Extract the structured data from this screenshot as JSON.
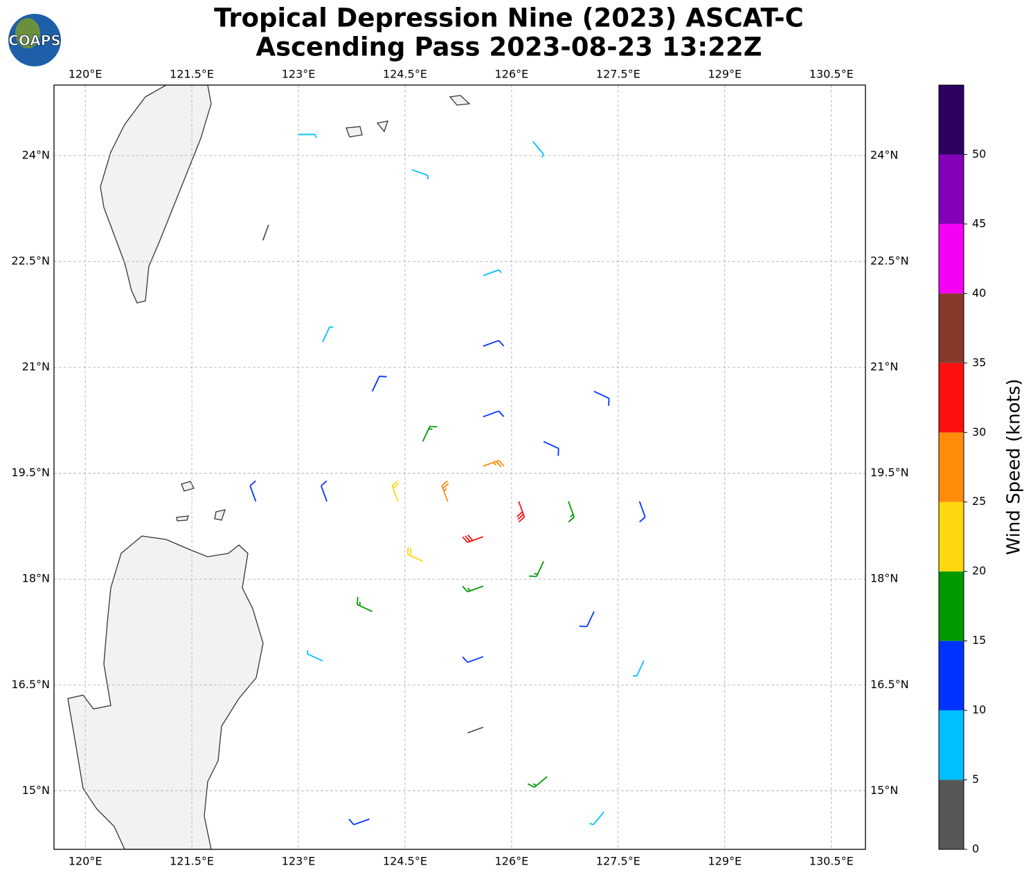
{
  "map": {
    "logo_text": "COAPS",
    "title": "Tropical Depression Nine (2023) ASCAT-C",
    "subtitle": "Ascending Pass 2023-08-23 13:22Z",
    "xlim": [
      119.56,
      130.98
    ],
    "ylim": [
      14.17,
      25.0
    ],
    "xticks": [
      {
        "value": 120,
        "label": "120°E"
      },
      {
        "value": 121.5,
        "label": "121.5°E"
      },
      {
        "value": 123,
        "label": "123°E"
      },
      {
        "value": 124.5,
        "label": "124.5°E"
      },
      {
        "value": 126,
        "label": "126°E"
      },
      {
        "value": 127.5,
        "label": "127.5°E"
      },
      {
        "value": 129,
        "label": "129°E"
      },
      {
        "value": 130.5,
        "label": "130.5°E"
      }
    ],
    "yticks": [
      {
        "value": 15,
        "label": "15°N"
      },
      {
        "value": 16.5,
        "label": "16.5°N"
      },
      {
        "value": 18,
        "label": "18°N"
      },
      {
        "value": 19.5,
        "label": "19.5°N"
      },
      {
        "value": 21,
        "label": "21°N"
      },
      {
        "value": 22.5,
        "label": "22.5°N"
      },
      {
        "value": 24,
        "label": "24°N"
      }
    ],
    "grid": true,
    "barbs": {
      "lon": [
        126.1,
        125.6,
        125.1,
        125.6,
        126.8,
        126.45,
        125.6,
        124.75,
        124.4,
        124.75,
        125.6,
        126.45,
        127.8,
        127.16,
        125.6,
        124.04,
        123.4,
        124.04,
        125.6,
        127.16,
        125.6,
        123.34,
        122.4,
        123.34,
        125.6,
        127.86,
        124.6,
        123.0,
        126.3,
        122.5,
        126.5,
        124.0,
        127.3
      ],
      "lat": [
        19.1,
        19.6,
        19.1,
        18.6,
        19.1,
        19.95,
        20.3,
        19.95,
        19.1,
        18.25,
        17.9,
        18.25,
        19.1,
        20.66,
        21.3,
        20.66,
        19.1,
        17.54,
        16.9,
        17.54,
        22.3,
        21.36,
        19.1,
        16.84,
        15.9,
        16.84,
        23.8,
        24.3,
        24.2,
        22.8,
        15.2,
        14.6,
        14.7
      ],
      "speed": [
        30,
        27,
        26,
        33,
        18,
        14,
        13,
        19,
        21,
        22,
        19,
        17,
        14,
        12,
        11,
        13,
        14,
        16,
        13,
        12,
        9,
        8,
        12,
        9,
        4,
        9,
        8,
        7,
        9,
        3,
        16,
        12,
        8
      ],
      "dir": [
        160,
        70,
        340,
        250,
        160,
        115,
        70,
        25,
        340,
        295,
        250,
        205,
        160,
        115,
        70,
        25,
        340,
        295,
        250,
        205,
        70,
        25,
        340,
        295,
        250,
        205,
        110,
        90,
        140,
        20,
        230,
        250,
        220
      ]
    },
    "colorbar": {
      "label": "Wind Speed (knots)",
      "bounds": [
        0,
        5,
        10,
        15,
        20,
        25,
        30,
        35,
        40,
        45,
        50,
        55
      ],
      "colors": [
        "#575757",
        "#00bfff",
        "#0033ff",
        "#009900",
        "#ffd70f",
        "#ff8c0a",
        "#ff1010",
        "#873a2a",
        "#f500f5",
        "#8400b8",
        "#2b005e"
      ],
      "ticks": [
        0,
        5,
        10,
        15,
        20,
        25,
        30,
        35,
        40,
        45,
        50
      ]
    }
  }
}
